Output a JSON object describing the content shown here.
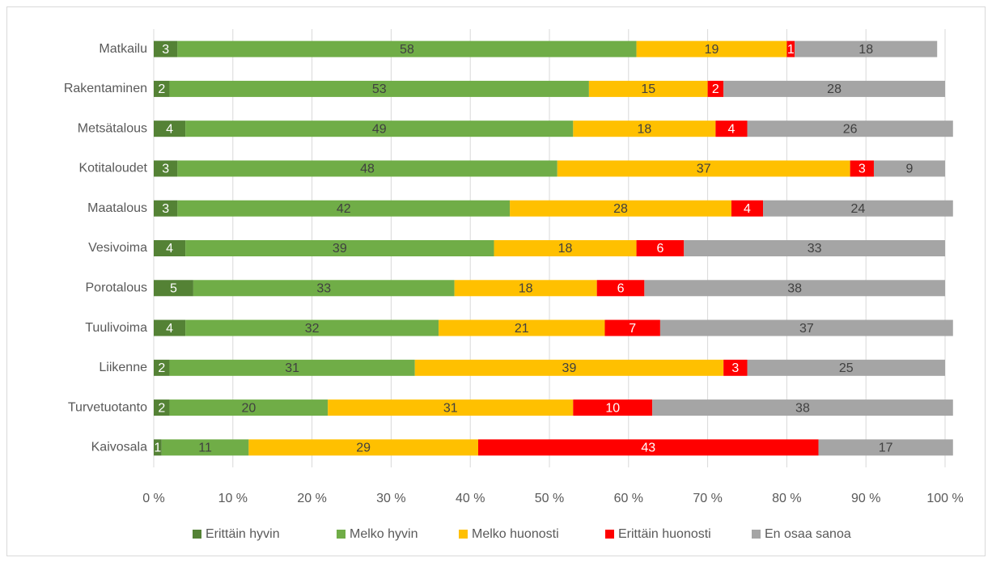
{
  "chart_data": {
    "type": "stacked_bar_horizontal",
    "categories": [
      "Matkailu",
      "Rakentaminen",
      "Metsätalous",
      "Kotitaloudet",
      "Maatalous",
      "Vesivoima",
      "Porotalous",
      "Tuulivoima",
      "Liikenne",
      "Turvetuotanto",
      "Kaivosala"
    ],
    "series": [
      {
        "name": "Erittäin hyvin",
        "color": "#548235",
        "values": [
          3,
          2,
          4,
          3,
          3,
          4,
          5,
          4,
          2,
          2,
          1
        ]
      },
      {
        "name": "Melko hyvin",
        "color": "#70ad47",
        "values": [
          58,
          53,
          49,
          48,
          42,
          39,
          33,
          32,
          31,
          20,
          11
        ]
      },
      {
        "name": "Melko huonosti",
        "color": "#ffc000",
        "values": [
          19,
          15,
          18,
          37,
          28,
          18,
          18,
          21,
          39,
          31,
          29
        ]
      },
      {
        "name": "Erittäin huonosti",
        "color": "#ff0000",
        "values": [
          1,
          2,
          4,
          3,
          4,
          6,
          6,
          7,
          3,
          10,
          43
        ]
      },
      {
        "name": "En osaa sanoa",
        "color": "#a5a5a5",
        "values": [
          18,
          28,
          26,
          9,
          24,
          33,
          38,
          37,
          25,
          38,
          17
        ]
      }
    ],
    "xlim": [
      0,
      100
    ],
    "xticks": [
      {
        "value": 0,
        "label": "0 %"
      },
      {
        "value": 10,
        "label": "10 %"
      },
      {
        "value": 20,
        "label": "20 %"
      },
      {
        "value": 30,
        "label": "30 %"
      },
      {
        "value": 40,
        "label": "40 %"
      },
      {
        "value": 50,
        "label": "50 %"
      },
      {
        "value": 60,
        "label": "60 %"
      },
      {
        "value": 70,
        "label": "70 %"
      },
      {
        "value": 80,
        "label": "80 %"
      },
      {
        "value": 90,
        "label": "90 %"
      },
      {
        "value": 100,
        "label": "100 %"
      }
    ],
    "grid": true,
    "legend": "bottom"
  }
}
